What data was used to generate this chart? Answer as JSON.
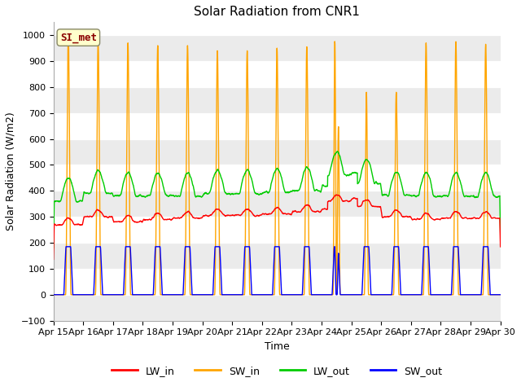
{
  "title": "Solar Radiation from CNR1",
  "xlabel": "Time",
  "ylabel": "Solar Radiation (W/m2)",
  "ylim": [
    -100,
    1050
  ],
  "xlim": [
    0,
    15
  ],
  "x_tick_labels": [
    "Apr 15",
    "Apr 16",
    "Apr 17",
    "Apr 18",
    "Apr 19",
    "Apr 20",
    "Apr 21",
    "Apr 22",
    "Apr 23",
    "Apr 24",
    "Apr 25",
    "Apr 26",
    "Apr 27",
    "Apr 28",
    "Apr 29",
    "Apr 30"
  ],
  "legend_labels": [
    "LW_in",
    "SW_in",
    "LW_out",
    "SW_out"
  ],
  "legend_colors": [
    "#ff0000",
    "#ffa500",
    "#00cc00",
    "#0000ff"
  ],
  "annotation_text": "SI_met",
  "annotation_color": "#8b0000",
  "annotation_bg": "#ffffcc",
  "fig_bg": "#ffffff",
  "plot_bg": "#ffffff",
  "grid_color": "#d3d3d3",
  "title_fontsize": 11,
  "label_fontsize": 9,
  "tick_fontsize": 8
}
